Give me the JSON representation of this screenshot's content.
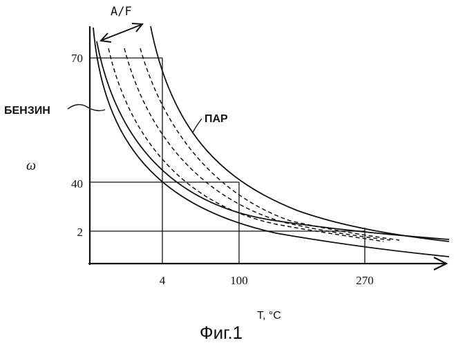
{
  "figure": {
    "caption": "Фиг.1",
    "axis_x_label": "T, °C",
    "axis_y_label": "ω",
    "af_label": "A/F"
  },
  "chart_data": {
    "type": "line",
    "xlabel": "T, °C",
    "ylabel": "ω",
    "x_ticks": [
      "4",
      "100",
      "270"
    ],
    "y_ticks": [
      "70",
      "40",
      "2"
    ],
    "annotations": [
      "A/F",
      "БЕНЗИН",
      "ПАР"
    ],
    "series": [
      {
        "name": "БЕНЗИН",
        "style": "solid"
      },
      {
        "name": "",
        "style": "solid"
      },
      {
        "name": "",
        "style": "dashed"
      },
      {
        "name": "",
        "style": "dashed"
      },
      {
        "name": "",
        "style": "dashed"
      },
      {
        "name": "ПАР",
        "style": "solid"
      }
    ]
  }
}
